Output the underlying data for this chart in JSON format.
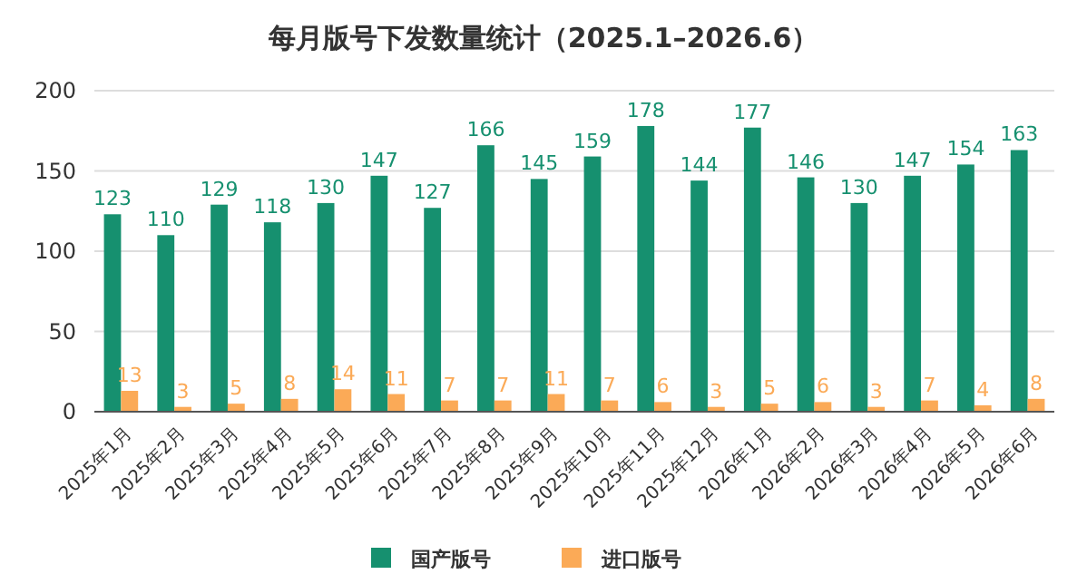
{
  "chart_data": {
    "type": "bar",
    "title": "每月版号下发数量统计（2025.1–2026.6）",
    "categories": [
      "2025年1月",
      "2025年2月",
      "2025年3月",
      "2025年4月",
      "2025年5月",
      "2025年6月",
      "2025年7月",
      "2025年8月",
      "2025年9月",
      "2025年10月",
      "2025年11月",
      "2025年12月",
      "2026年1月",
      "2026年2月",
      "2026年3月",
      "2026年4月",
      "2026年5月",
      "2026年6月"
    ],
    "series": [
      {
        "name": "国产版号",
        "color": "#16906f",
        "values": [
          123,
          110,
          129,
          118,
          130,
          147,
          127,
          166,
          145,
          159,
          178,
          144,
          177,
          146,
          130,
          147,
          154,
          163
        ]
      },
      {
        "name": "进口版号",
        "color": "#fbaa57",
        "values": [
          13,
          3,
          5,
          8,
          14,
          11,
          7,
          7,
          11,
          7,
          6,
          3,
          5,
          6,
          3,
          7,
          4,
          8
        ]
      }
    ],
    "ylim": [
      0,
      200
    ],
    "yticks": [
      0,
      50,
      100,
      150,
      200
    ],
    "grid": "y",
    "legend": "bottom",
    "data_labels": true
  }
}
